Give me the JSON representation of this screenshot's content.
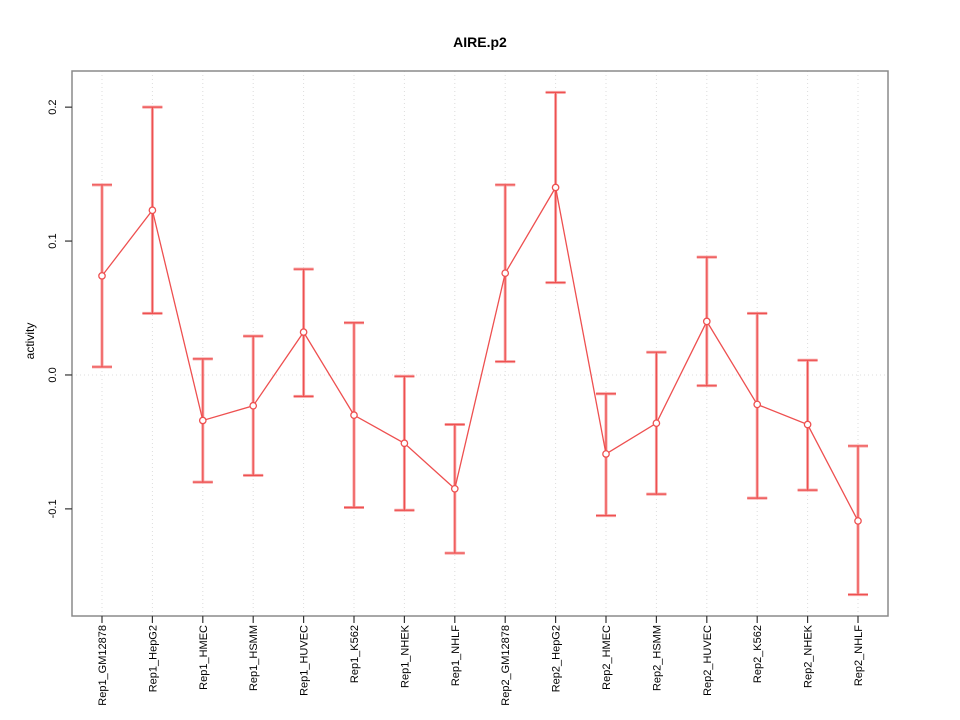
{
  "figure": {
    "background": "#ffffff"
  },
  "chart_data": {
    "type": "line",
    "title": "AIRE.p2",
    "xlabel": "",
    "ylabel": "activity",
    "legend": "none",
    "grid": "vertical-dotted-gridlines-and-dotted-zero-line",
    "marker": "open-circle",
    "line_color": "#ee5050",
    "error_bar_halo_color": "#f7a3a3",
    "grid_color": "#dcdcdc",
    "box_color": "#8a8a8a",
    "ylim": [
      -0.18,
      0.227
    ],
    "yticks": [
      -0.1,
      0.0,
      0.1,
      0.2
    ],
    "categories": [
      "Rep1_GM12878",
      "Rep1_HepG2",
      "Rep1_HMEC",
      "Rep1_HSMM",
      "Rep1_HUVEC",
      "Rep1_K562",
      "Rep1_NHEK",
      "Rep1_NHLF",
      "Rep2_GM12878",
      "Rep2_HepG2",
      "Rep2_HMEC",
      "Rep2_HSMM",
      "Rep2_HUVEC",
      "Rep2_K562",
      "Rep2_NHEK",
      "Rep2_NHLF"
    ],
    "series": [
      {
        "name": "activity",
        "values": [
          0.074,
          0.123,
          -0.034,
          -0.023,
          0.032,
          -0.03,
          -0.051,
          -0.085,
          0.076,
          0.14,
          -0.059,
          -0.036,
          0.04,
          -0.022,
          -0.037,
          -0.109
        ],
        "upper": [
          0.142,
          0.2,
          0.012,
          0.029,
          0.079,
          0.039,
          -0.001,
          -0.037,
          0.142,
          0.211,
          -0.014,
          0.017,
          0.088,
          0.046,
          0.011,
          -0.053
        ],
        "lower": [
          0.006,
          0.046,
          -0.08,
          -0.075,
          -0.016,
          -0.099,
          -0.101,
          -0.133,
          0.01,
          0.069,
          -0.105,
          -0.089,
          -0.008,
          -0.092,
          -0.086,
          -0.164
        ]
      }
    ]
  }
}
